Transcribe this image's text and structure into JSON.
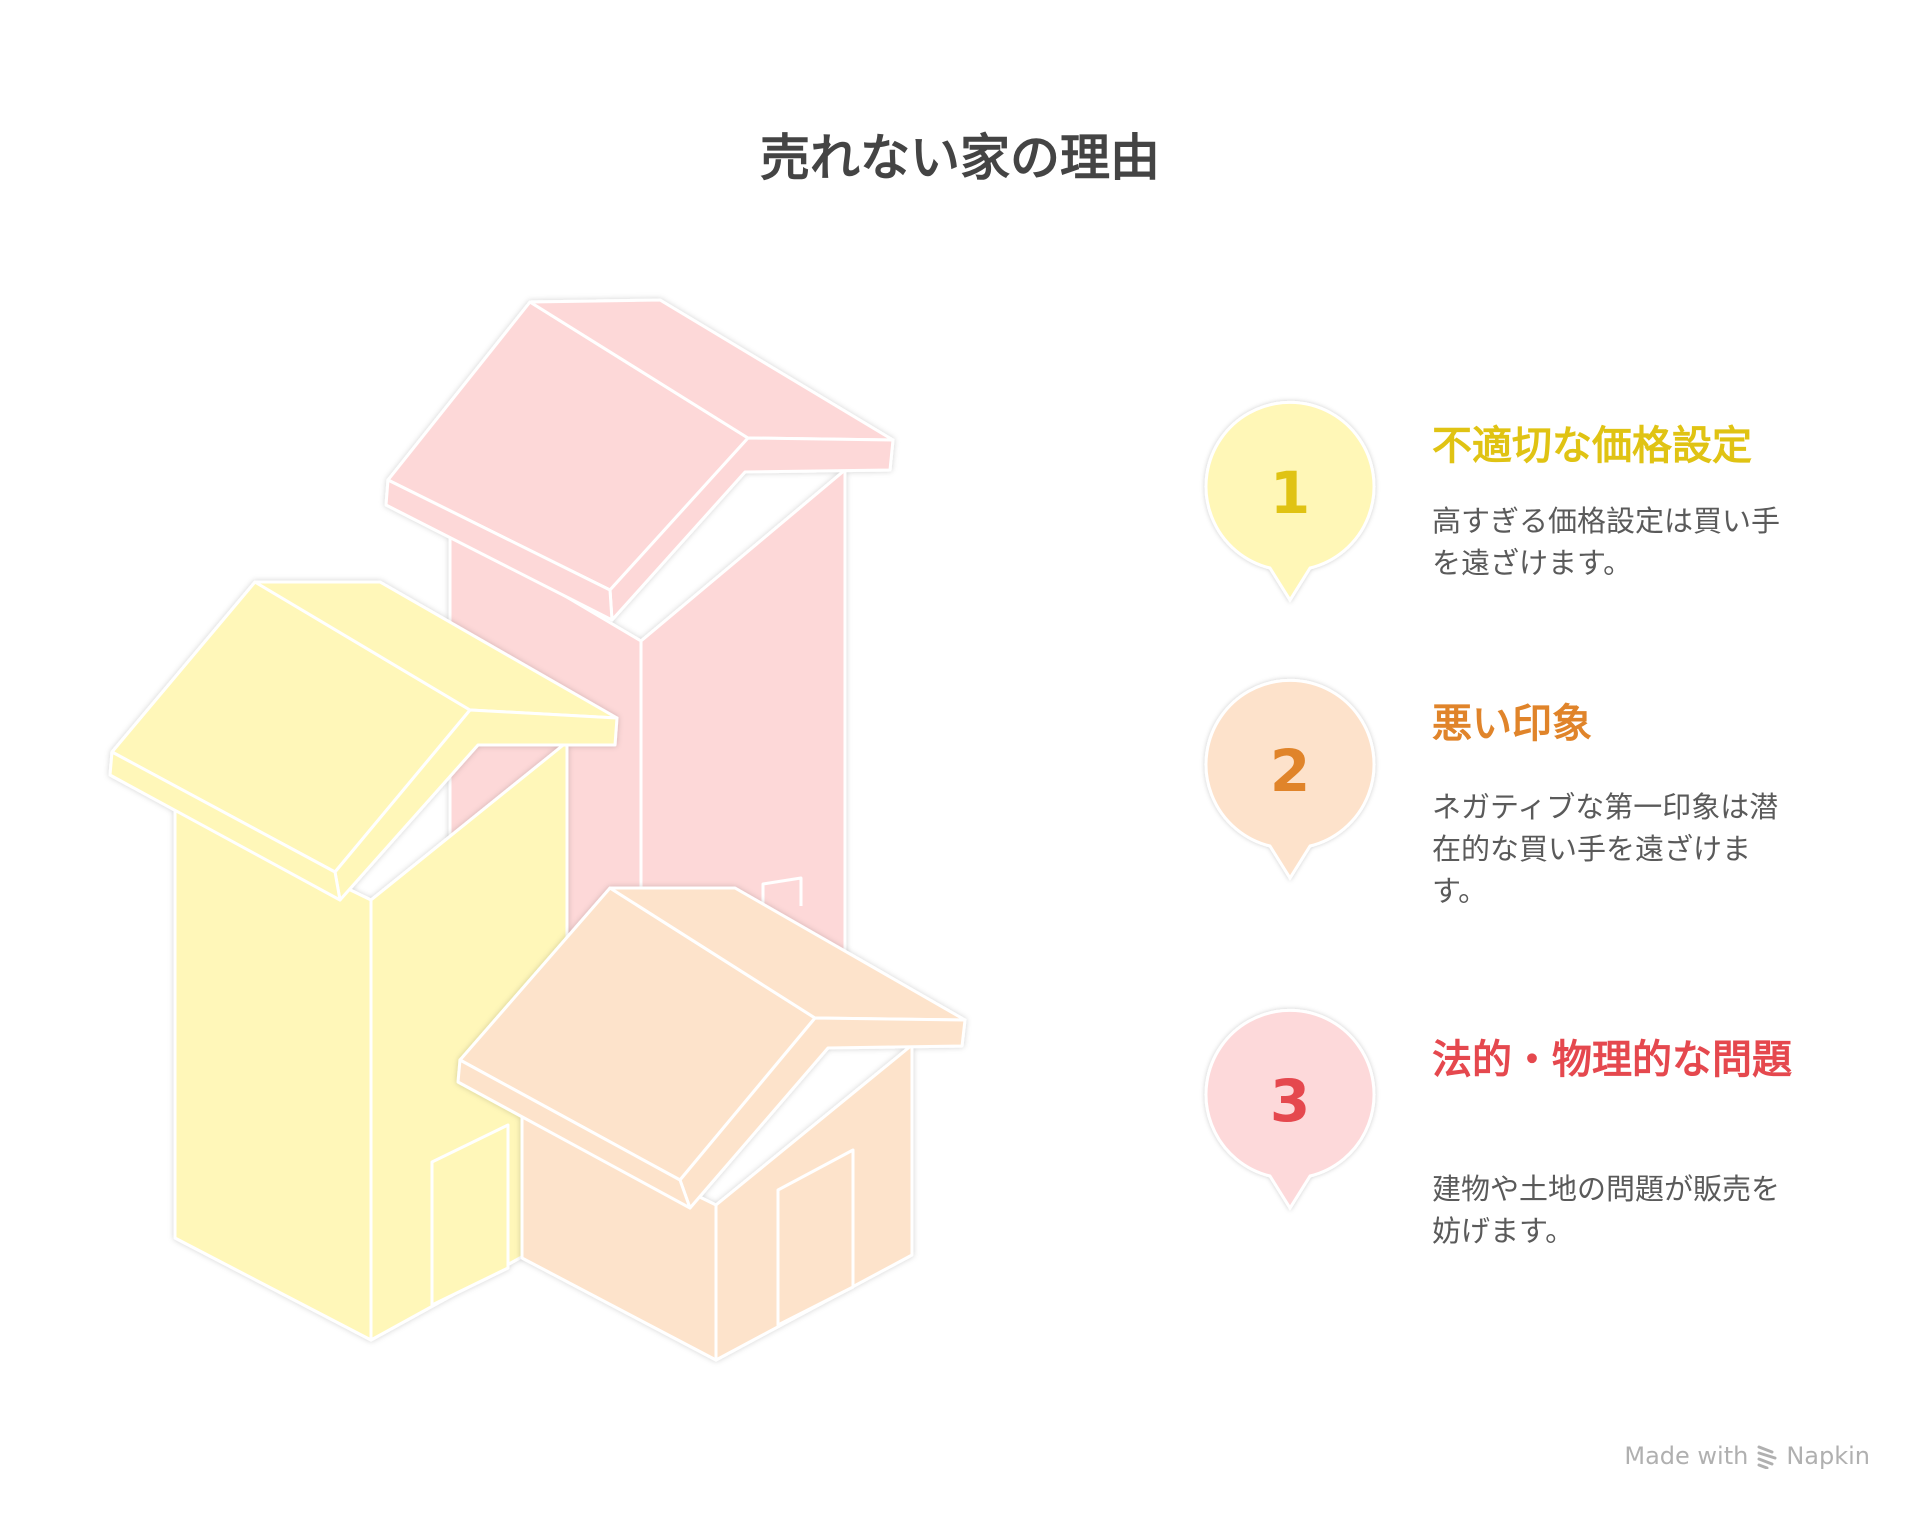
{
  "title": "売れない家の理由",
  "items": [
    {
      "number": "1",
      "heading": "不適切な価格設定",
      "description": "高すぎる価格設定は買い手を遠ざけます。",
      "color": "#E0C313",
      "fill": "#FFF7B7"
    },
    {
      "number": "2",
      "heading": "悪い印象",
      "description": "ネガティブな第一印象は潜在的な買い手を遠ざけます。",
      "color": "#E0842A",
      "fill": "#FDE2CB"
    },
    {
      "number": "3",
      "heading": "法的・物理的な問題",
      "description": "建物や土地の問題が販売を妨げます。",
      "color": "#E5484E",
      "fill": "#FDD9DA"
    }
  ],
  "footer": {
    "made_with": "Made with",
    "brand": "Napkin",
    "icon": "napkin-logo-icon"
  },
  "colors": {
    "house_pink": "#FDD8D8",
    "house_yellow": "#FFF7B9",
    "house_peach": "#FDE3CB",
    "outline": "#ffffff",
    "title": "#444444"
  }
}
